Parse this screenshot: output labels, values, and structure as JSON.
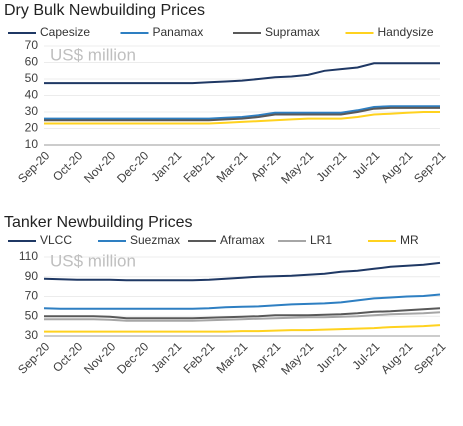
{
  "chart_data": [
    {
      "type": "line",
      "title": "Dry Bulk Newbuilding Prices",
      "annotation": "US$ million",
      "categories": [
        "Sep-20",
        null,
        "Oct-20",
        null,
        "Nov-20",
        null,
        "Dec-20",
        null,
        "Jan-21",
        null,
        "Feb-21",
        null,
        "Mar-21",
        null,
        "Apr-21",
        null,
        "May-21",
        null,
        "Jun-21",
        null,
        "Jul-21",
        null,
        "Aug-21",
        null,
        "Sep-21"
      ],
      "ylim": [
        10,
        70
      ],
      "yticks": [
        10,
        20,
        30,
        40,
        50,
        60,
        70
      ],
      "grid": true,
      "series": [
        {
          "name": "Capesize",
          "color": "#1f3864",
          "values": [
            47.5,
            47.5,
            47.5,
            47.5,
            47.5,
            47.5,
            47.5,
            47.5,
            47.5,
            47.5,
            48,
            48.5,
            49,
            50,
            51,
            51.5,
            52.5,
            55,
            56,
            57,
            59.5,
            59.5,
            59.5,
            59.5,
            59.5
          ]
        },
        {
          "name": "Panamax",
          "color": "#2e7fc2",
          "values": [
            26,
            26,
            26,
            26,
            26,
            26,
            26,
            26,
            26,
            26,
            26,
            26.5,
            27,
            28,
            29.5,
            29.5,
            29.5,
            29.5,
            29.5,
            31,
            33,
            33.5,
            33.5,
            33.5,
            33.5
          ]
        },
        {
          "name": "Supramax",
          "color": "#595959",
          "values": [
            25,
            25,
            25,
            25,
            25,
            25,
            25,
            25,
            25,
            25,
            25,
            25.5,
            26,
            27,
            28.5,
            28.5,
            28.5,
            28.5,
            28.5,
            30,
            32,
            32.5,
            32.5,
            32.5,
            32.5
          ]
        },
        {
          "name": "Handysize",
          "color": "#ffd21f",
          "values": [
            23,
            23,
            23,
            23,
            23,
            23,
            23,
            23,
            23,
            23,
            23,
            23.5,
            24,
            24.5,
            25,
            25.5,
            26,
            26,
            26,
            27,
            28.5,
            29,
            29.5,
            30,
            30
          ]
        }
      ]
    },
    {
      "type": "line",
      "title": "Tanker Newbuilding Prices",
      "annotation": "US$ million",
      "categories": [
        "Sep-20",
        null,
        "Oct-20",
        null,
        "Nov-20",
        null,
        "Dec-20",
        null,
        "Jan-21",
        null,
        "Feb-21",
        null,
        "Mar-21",
        null,
        "Apr-21",
        null,
        "May-21",
        null,
        "Jun-21",
        null,
        "Jul-21",
        null,
        "Aug-21",
        null,
        "Sep-21"
      ],
      "ylim": [
        30,
        115
      ],
      "yticks": [
        30,
        50,
        70,
        90,
        110
      ],
      "grid": true,
      "series": [
        {
          "name": "VLCC",
          "color": "#1f3864",
          "values": [
            88,
            87.5,
            87,
            87,
            87,
            86.5,
            86.5,
            86.5,
            86.5,
            86.5,
            87,
            88,
            89,
            90,
            90.5,
            91,
            92,
            93,
            95,
            96,
            98,
            100,
            101,
            102,
            104
          ]
        },
        {
          "name": "Suezmax",
          "color": "#2e7fc2",
          "values": [
            58,
            57.5,
            57.5,
            57.5,
            57.5,
            57.5,
            57.5,
            57.5,
            57.5,
            57.5,
            58,
            59,
            59.5,
            60,
            61,
            62,
            62.5,
            63,
            64,
            66,
            68,
            69,
            70,
            70.5,
            72
          ]
        },
        {
          "name": "Aframax",
          "color": "#595959",
          "values": [
            50,
            50,
            50,
            50,
            49.5,
            48,
            48,
            48,
            48,
            48,
            48.5,
            49,
            49.5,
            50,
            51,
            51,
            51,
            51.5,
            52,
            53,
            54.5,
            55,
            56,
            57,
            58
          ]
        },
        {
          "name": "LR1",
          "color": "#a6a6a6",
          "values": [
            47,
            47,
            47,
            47,
            46.5,
            45.5,
            45.5,
            45.5,
            45.5,
            45.5,
            46,
            46.5,
            47,
            47.5,
            48,
            48.5,
            49,
            49,
            49.5,
            50,
            51,
            52,
            52.5,
            53,
            54
          ]
        },
        {
          "name": "MR",
          "color": "#ffd21f",
          "values": [
            34.5,
            34.5,
            34.5,
            34.5,
            34.5,
            34.5,
            34.5,
            34.5,
            34.5,
            34.5,
            34.5,
            34.5,
            35,
            35,
            35.5,
            36,
            36,
            36.5,
            37,
            37.5,
            38,
            39,
            39.5,
            40,
            41
          ]
        }
      ]
    }
  ]
}
